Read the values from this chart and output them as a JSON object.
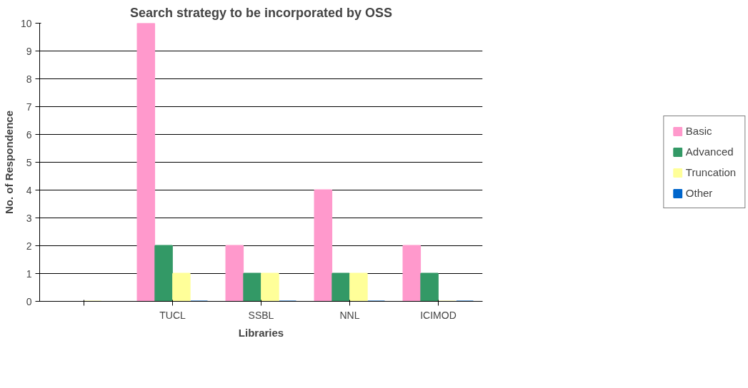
{
  "chart_data": {
    "type": "bar",
    "title": "Search strategy to be incorporated by OSS",
    "xlabel": "Libraries",
    "ylabel": "No. of Respondence",
    "categories": [
      null,
      "TUCL",
      "SSBL",
      "NNL",
      "ICIMOD"
    ],
    "series": [
      {
        "name": "Basic",
        "color": "#ff99cc",
        "values": [
          null,
          10,
          2,
          4,
          2
        ]
      },
      {
        "name": "Advanced",
        "color": "#339966",
        "values": [
          null,
          2,
          1,
          1,
          1
        ]
      },
      {
        "name": "Truncation",
        "color": "#ffff99",
        "values": [
          0,
          1,
          1,
          1,
          0
        ]
      },
      {
        "name": "Other",
        "color": "#0066cc",
        "values": [
          null,
          0,
          0,
          0,
          0
        ]
      }
    ],
    "ylim": [
      0,
      10
    ],
    "yticks": [
      0,
      1,
      2,
      3,
      4,
      5,
      6,
      7,
      8,
      9,
      10
    ],
    "grid": "y",
    "legend": "right"
  }
}
